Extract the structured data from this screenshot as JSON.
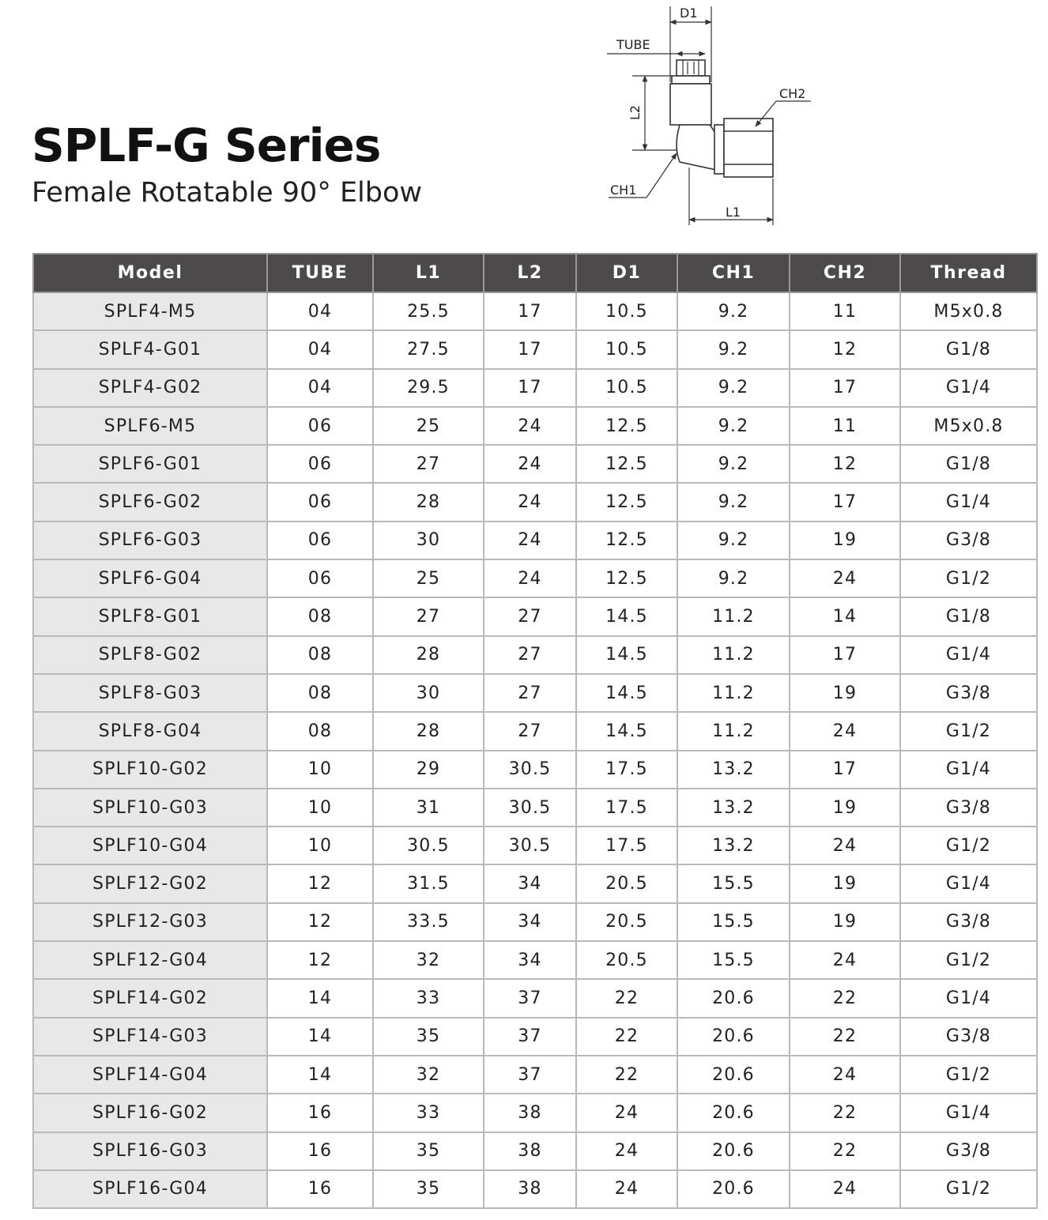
{
  "title": "SPLF-G Series",
  "subtitle": "Female Rotatable 90° Elbow",
  "drawing": {
    "labels": {
      "d1": "D1",
      "tube": "TUBE",
      "l2": "L2",
      "ch2": "CH2",
      "ch1": "CH1",
      "l1": "L1"
    }
  },
  "table": {
    "headers": [
      "Model",
      "TUBE",
      "L1",
      "L2",
      "D1",
      "CH1",
      "CH2",
      "Thread"
    ],
    "rows": [
      [
        "SPLF4-M5",
        "04",
        "25.5",
        "17",
        "10.5",
        "9.2",
        "11",
        "M5x0.8"
      ],
      [
        "SPLF4-G01",
        "04",
        "27.5",
        "17",
        "10.5",
        "9.2",
        "12",
        "G1/8"
      ],
      [
        "SPLF4-G02",
        "04",
        "29.5",
        "17",
        "10.5",
        "9.2",
        "17",
        "G1/4"
      ],
      [
        "SPLF6-M5",
        "06",
        "25",
        "24",
        "12.5",
        "9.2",
        "11",
        "M5x0.8"
      ],
      [
        "SPLF6-G01",
        "06",
        "27",
        "24",
        "12.5",
        "9.2",
        "12",
        "G1/8"
      ],
      [
        "SPLF6-G02",
        "06",
        "28",
        "24",
        "12.5",
        "9.2",
        "17",
        "G1/4"
      ],
      [
        "SPLF6-G03",
        "06",
        "30",
        "24",
        "12.5",
        "9.2",
        "19",
        "G3/8"
      ],
      [
        "SPLF6-G04",
        "06",
        "25",
        "24",
        "12.5",
        "9.2",
        "24",
        "G1/2"
      ],
      [
        "SPLF8-G01",
        "08",
        "27",
        "27",
        "14.5",
        "11.2",
        "14",
        "G1/8"
      ],
      [
        "SPLF8-G02",
        "08",
        "28",
        "27",
        "14.5",
        "11.2",
        "17",
        "G1/4"
      ],
      [
        "SPLF8-G03",
        "08",
        "30",
        "27",
        "14.5",
        "11.2",
        "19",
        "G3/8"
      ],
      [
        "SPLF8-G04",
        "08",
        "28",
        "27",
        "14.5",
        "11.2",
        "24",
        "G1/2"
      ],
      [
        "SPLF10-G02",
        "10",
        "29",
        "30.5",
        "17.5",
        "13.2",
        "17",
        "G1/4"
      ],
      [
        "SPLF10-G03",
        "10",
        "31",
        "30.5",
        "17.5",
        "13.2",
        "19",
        "G3/8"
      ],
      [
        "SPLF10-G04",
        "10",
        "30.5",
        "30.5",
        "17.5",
        "13.2",
        "24",
        "G1/2"
      ],
      [
        "SPLF12-G02",
        "12",
        "31.5",
        "34",
        "20.5",
        "15.5",
        "19",
        "G1/4"
      ],
      [
        "SPLF12-G03",
        "12",
        "33.5",
        "34",
        "20.5",
        "15.5",
        "19",
        "G3/8"
      ],
      [
        "SPLF12-G04",
        "12",
        "32",
        "34",
        "20.5",
        "15.5",
        "24",
        "G1/2"
      ],
      [
        "SPLF14-G02",
        "14",
        "33",
        "37",
        "22",
        "20.6",
        "22",
        "G1/4"
      ],
      [
        "SPLF14-G03",
        "14",
        "35",
        "37",
        "22",
        "20.6",
        "22",
        "G3/8"
      ],
      [
        "SPLF14-G04",
        "14",
        "32",
        "37",
        "22",
        "20.6",
        "24",
        "G1/2"
      ],
      [
        "SPLF16-G02",
        "16",
        "33",
        "38",
        "24",
        "20.6",
        "22",
        "G1/4"
      ],
      [
        "SPLF16-G03",
        "16",
        "35",
        "38",
        "24",
        "20.6",
        "22",
        "G3/8"
      ],
      [
        "SPLF16-G04",
        "16",
        "35",
        "38",
        "24",
        "20.6",
        "24",
        "G1/2"
      ]
    ]
  }
}
